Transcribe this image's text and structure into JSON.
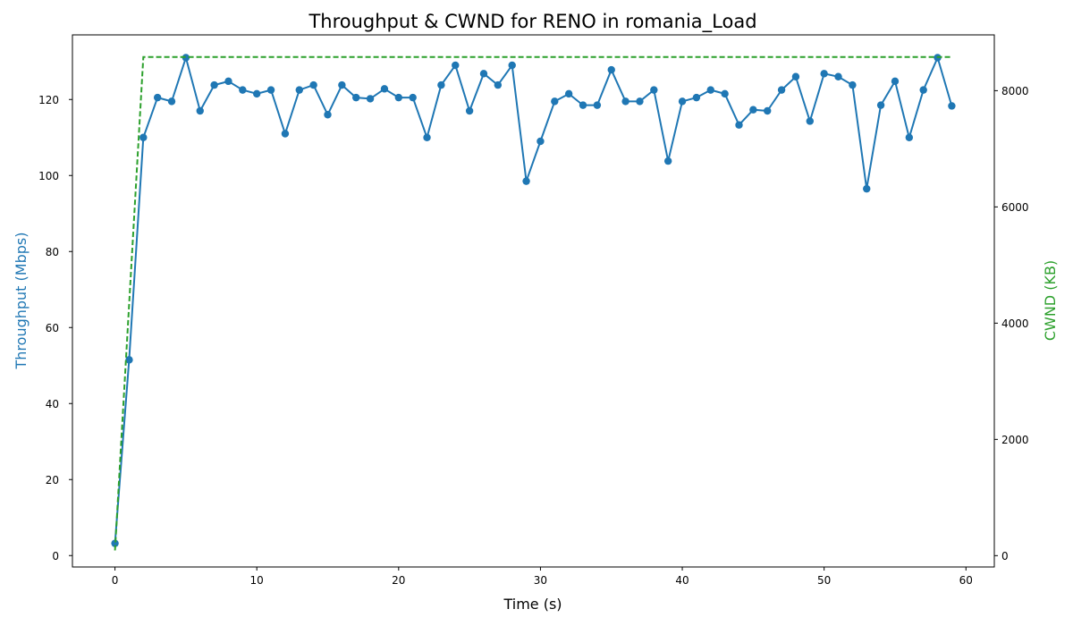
{
  "chart_data": {
    "type": "line",
    "title": "Throughput & CWND for RENO in romania_Load",
    "xlabel": "Time (s)",
    "ylabel_left": "Throughput (Mbps)",
    "ylabel_right": "CWND (KB)",
    "xlim": [
      -3,
      62
    ],
    "ylim_left": [
      -3,
      137
    ],
    "ylim_right": [
      -195,
      8960
    ],
    "x_ticks": [
      0,
      10,
      20,
      30,
      40,
      50,
      60
    ],
    "y_left_ticks": [
      0,
      20,
      40,
      60,
      80,
      100,
      120
    ],
    "y_right_ticks": [
      0,
      2000,
      4000,
      6000,
      8000
    ],
    "grid": false,
    "colors": {
      "throughput": "#1f77b4",
      "cwnd": "#2ca02c"
    },
    "series": [
      {
        "axis": "left",
        "style": "solid-with-markers",
        "x": [
          0,
          1,
          2,
          3,
          4,
          5,
          6,
          7,
          8,
          9,
          10,
          11,
          12,
          13,
          14,
          15,
          16,
          17,
          18,
          19,
          20,
          21,
          22,
          23,
          24,
          25,
          26,
          27,
          28,
          29,
          30,
          31,
          32,
          33,
          34,
          35,
          36,
          37,
          38,
          39,
          40,
          41,
          42,
          43,
          44,
          45,
          46,
          47,
          48,
          49,
          50,
          51,
          52,
          53,
          54,
          55,
          56,
          57,
          58,
          59
        ],
        "values": [
          3.2,
          51.5,
          110.0,
          120.5,
          119.5,
          131.0,
          117.0,
          123.8,
          124.8,
          122.5,
          121.5,
          122.5,
          111.0,
          122.5,
          123.8,
          116.0,
          123.8,
          120.5,
          120.2,
          122.8,
          120.5,
          120.5,
          110.0,
          123.8,
          129.0,
          117.0,
          126.8,
          123.8,
          129.0,
          98.5,
          109.0,
          119.5,
          121.5,
          118.5,
          118.5,
          127.8,
          119.5,
          119.5,
          122.5,
          103.8,
          119.5,
          120.5,
          122.5,
          121.5,
          113.3,
          117.3,
          117.0,
          122.5,
          126.0,
          114.3,
          126.8,
          126.0,
          123.8,
          96.5,
          118.5,
          124.8,
          110.0,
          122.5,
          131.0,
          118.3
        ]
      },
      {
        "axis": "right",
        "style": "dashed",
        "x": [
          0,
          2,
          59
        ],
        "values": [
          90,
          8580,
          8580
        ]
      }
    ]
  }
}
